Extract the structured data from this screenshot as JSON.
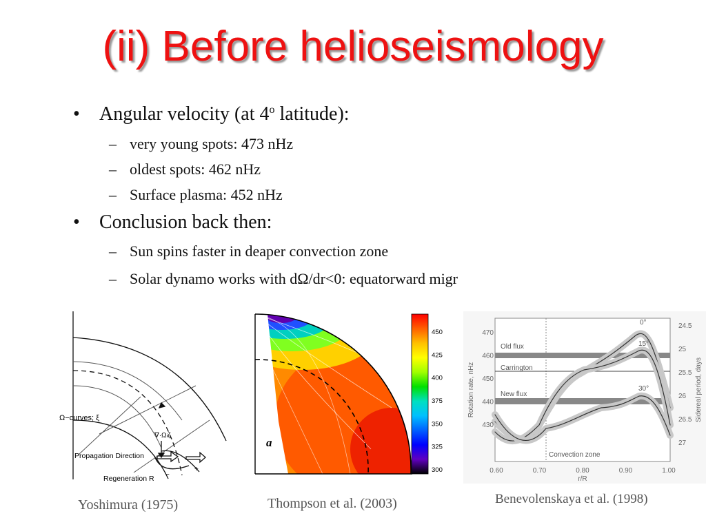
{
  "title": "(ii) Before helioseismology",
  "bullets": [
    {
      "marker": "•",
      "text": "Angular velocity (at 4",
      "sup": "o",
      "text_after": " latitude):",
      "sub": [
        "very young spots: 473 nHz",
        "oldest spots: 462 nHz",
        "Surface plasma: 452 nHz"
      ]
    },
    {
      "marker": "•",
      "text": "Conclusion back then:",
      "sub": [
        "Sun spins faster in deaper convection zone",
        "Solar dynamo works with dΩ/dr<0: equatorward migr"
      ]
    }
  ],
  "sub_marker": "–",
  "figures": {
    "yoshimura": {
      "caption": "Yoshimura (1975)",
      "labels": {
        "omega_curves": "Ω−curves",
        "xi": "; ξ",
        "grad": "∇·Ω",
        "grad_sub": "i",
        "grad_after": "ζ",
        "propagation": "Propagation Direction",
        "regeneration": "Regeneration R",
        "minus": "−",
        "plus": "+"
      }
    },
    "thompson": {
      "caption": "Thompson et al. (2003)",
      "panel_label": "a",
      "colorbar_ticks": [
        "450",
        "425",
        "400",
        "375",
        "350",
        "325",
        "300"
      ],
      "colorbar_stops": [
        "#ff0000",
        "#ff6000",
        "#ffc000",
        "#ffff00",
        "#a0ff00",
        "#00e000",
        "#00e0c0",
        "#00c0ff",
        "#0060ff",
        "#0000ff",
        "#6000c0",
        "#000000"
      ]
    },
    "benevolenskaya": {
      "caption": "Benevolenskaya et al. (1998)",
      "ylabel_left": "Rotation rate, nHz",
      "ylabel_right": "Sidereal period, days",
      "xlabel": "r/R",
      "left_ticks": [
        "470",
        "460",
        "450",
        "440",
        "430"
      ],
      "right_ticks": [
        "24.5",
        "25",
        "25.5",
        "26",
        "26.5",
        "27"
      ],
      "x_ticks": [
        "0.60",
        "0.70",
        "0.80",
        "0.90",
        "1.00"
      ],
      "series_labels": {
        "old_flux": "Old flux",
        "carrington": "Carrington",
        "new_flux": "New flux",
        "convection_zone": "Convection zone",
        "lat0": "0°",
        "lat15": "15°",
        "lat30": "30°"
      }
    }
  }
}
